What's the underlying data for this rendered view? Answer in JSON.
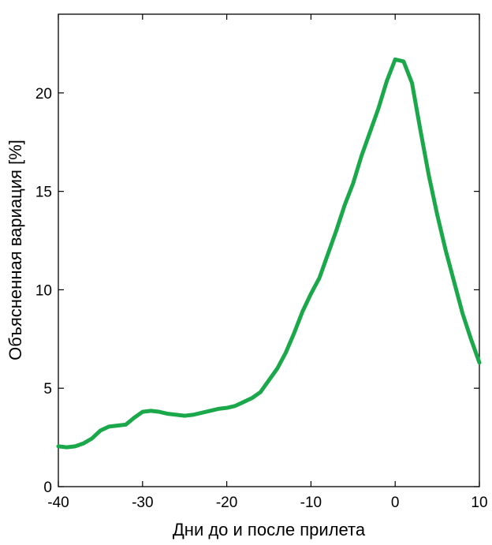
{
  "chart_data": {
    "type": "line",
    "title": "",
    "xlabel": "Дни до и после прилета",
    "ylabel": "Объясненная вариация [%]",
    "xlim": [
      -40,
      10
    ],
    "ylim": [
      0,
      24
    ],
    "xticks": [
      -40,
      -30,
      -20,
      -10,
      0,
      10
    ],
    "xtick_labels": [
      "-40",
      "-30",
      "-20",
      "-10",
      "0",
      "10"
    ],
    "yticks": [
      0,
      5,
      10,
      15,
      20
    ],
    "ytick_labels": [
      "0",
      "5",
      "10",
      "15",
      "20"
    ],
    "grid": false,
    "line_color": "#1aa84b",
    "series": [
      {
        "x": [
          -40,
          -39,
          -38,
          -37,
          -36,
          -35,
          -34,
          -33,
          -32,
          -31,
          -30,
          -29,
          -28,
          -27,
          -26,
          -25,
          -24,
          -23,
          -22,
          -21,
          -20,
          -19,
          -18,
          -17,
          -16,
          -15,
          -14,
          -13,
          -12,
          -11,
          -10,
          -9,
          -8,
          -7,
          -6,
          -5,
          -4,
          -3,
          -2,
          -1,
          0,
          1,
          2,
          3,
          4,
          5,
          6,
          7,
          8,
          9,
          10
        ],
        "y": [
          2.05,
          2.0,
          2.05,
          2.2,
          2.45,
          2.85,
          3.05,
          3.1,
          3.15,
          3.5,
          3.8,
          3.85,
          3.8,
          3.7,
          3.65,
          3.6,
          3.65,
          3.75,
          3.85,
          3.95,
          4.0,
          4.1,
          4.3,
          4.5,
          4.8,
          5.4,
          6.0,
          6.8,
          7.8,
          8.9,
          9.8,
          10.6,
          11.8,
          13.0,
          14.3,
          15.4,
          16.8,
          18.0,
          19.2,
          20.6,
          21.7,
          21.6,
          20.5,
          18.1,
          15.8,
          13.8,
          12.0,
          10.4,
          8.8,
          7.5,
          6.3
        ]
      }
    ]
  }
}
